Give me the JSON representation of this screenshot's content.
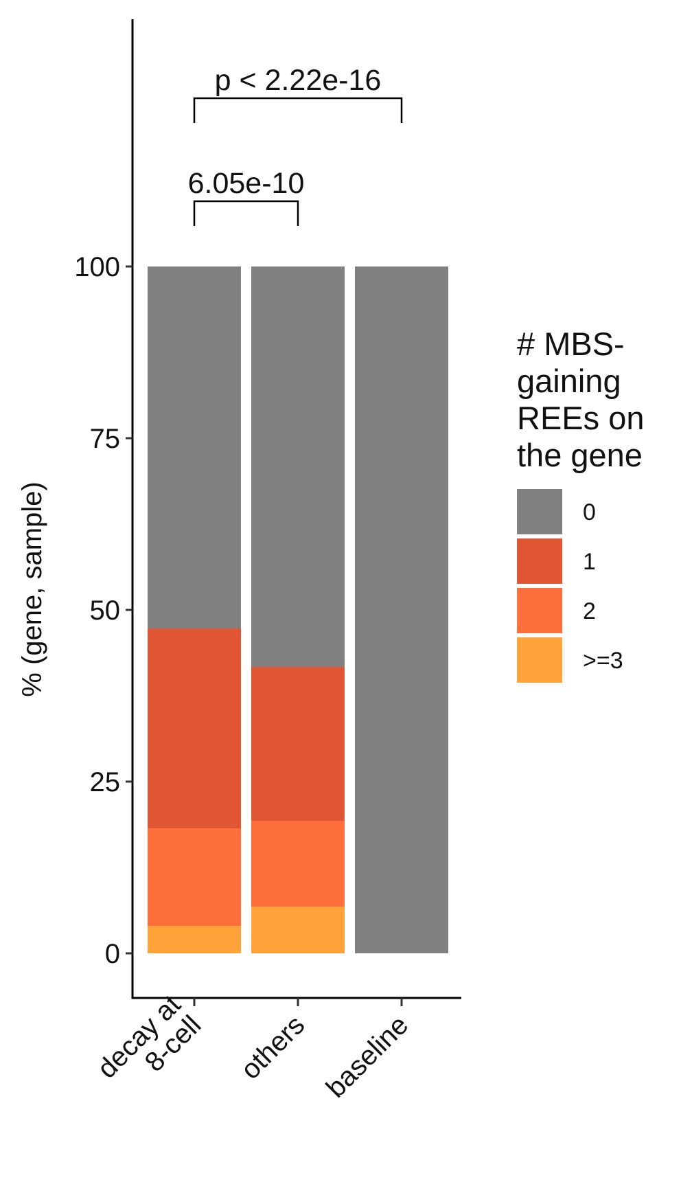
{
  "chart_data": {
    "type": "bar",
    "stacked": true,
    "categories": [
      "decay at\n8-cell",
      "others",
      "baseline"
    ],
    "series": [
      {
        "name": "0",
        "color": "#808080",
        "values": [
          52.7,
          58.3,
          100
        ]
      },
      {
        "name": "1",
        "color": "#E05634",
        "values": [
          29.1,
          22.4,
          0
        ]
      },
      {
        "name": "2",
        "color": "#FF6F3C",
        "values": [
          14.2,
          12.5,
          0
        ]
      },
      {
        "name": ">=3",
        "color": "#FFA23A",
        "values": [
          4.0,
          6.8,
          0
        ]
      }
    ],
    "xlabel": "",
    "ylabel": "% (gene, sample)",
    "ylim": [
      -6.5,
      136
    ],
    "yticks": [
      0,
      25,
      50,
      75,
      100
    ],
    "legend": {
      "title": "# MBS-\ngaining\nREEs on\nthe gene",
      "position": "right"
    },
    "annotations": [
      {
        "text": "p < 2.22e-16",
        "from": "decay at\n8-cell",
        "to": "baseline",
        "level": 124.5
      },
      {
        "text": "6.05e-10",
        "from": "decay at\n8-cell",
        "to": "others",
        "level": 109.5
      }
    ],
    "grid": false
  }
}
